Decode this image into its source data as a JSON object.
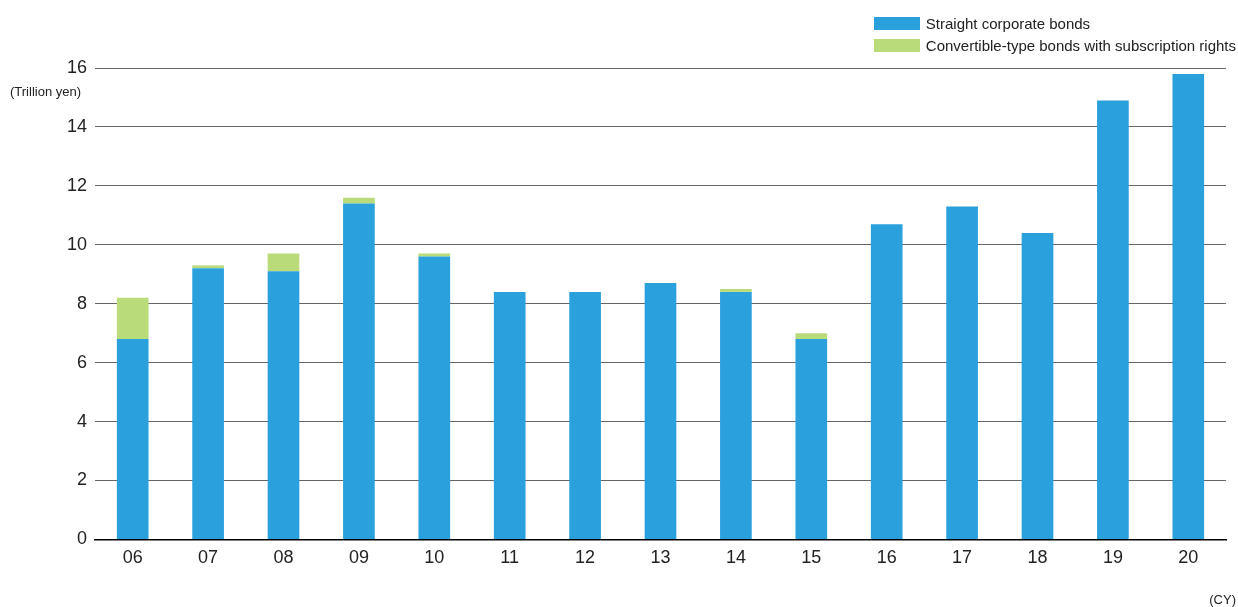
{
  "chart_data": {
    "type": "bar",
    "stacked": true,
    "ylabel": "(Trillion yen)",
    "xlabel": "(CY)",
    "categories": [
      "06",
      "07",
      "08",
      "09",
      "10",
      "11",
      "12",
      "13",
      "14",
      "15",
      "16",
      "17",
      "18",
      "19",
      "20"
    ],
    "series": [
      {
        "name": "Straight corporate bonds",
        "color": "#2aa1dd",
        "values": [
          6.8,
          9.2,
          9.1,
          11.4,
          9.6,
          8.4,
          8.4,
          8.7,
          8.4,
          6.8,
          10.7,
          11.3,
          10.4,
          14.9,
          15.8
        ]
      },
      {
        "name": "Convertible-type bonds with subscription rights",
        "color": "#badb7a",
        "values": [
          1.4,
          0.1,
          0.6,
          0.2,
          0.1,
          null,
          null,
          null,
          0.1,
          0.2,
          null,
          null,
          null,
          null,
          null
        ]
      }
    ],
    "ylim": [
      0,
      16
    ],
    "yticks": [
      0,
      2,
      4,
      6,
      8,
      10,
      12,
      14,
      16
    ],
    "grid": "y",
    "legend": "top right"
  }
}
